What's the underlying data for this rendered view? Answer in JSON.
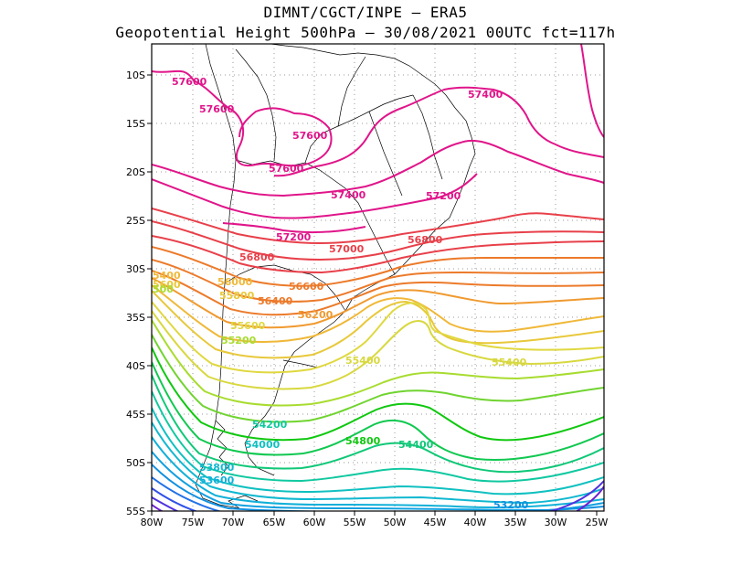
{
  "header": {
    "line1": "DIMNT/CGCT/INPE –  ERA5",
    "line2": "Geopotential Height 500hPa –  30/08/2021 00UTC fct=117h"
  },
  "axes": {
    "x_ticks": [
      "80W",
      "75W",
      "70W",
      "65W",
      "60W",
      "55W",
      "50W",
      "45W",
      "40W",
      "35W",
      "30W",
      "25W"
    ],
    "y_ticks": [
      "10S",
      "15S",
      "20S",
      "25S",
      "30S",
      "35S",
      "40S",
      "45S",
      "50S",
      "55S"
    ]
  },
  "contour_labels": [
    {
      "text": "57600",
      "color": "#e0158a"
    },
    {
      "text": "57600",
      "color": "#e0158a"
    },
    {
      "text": "57600",
      "color": "#e0158a"
    },
    {
      "text": "57600",
      "color": "#e0158a"
    },
    {
      "text": "57400",
      "color": "#e0158a"
    },
    {
      "text": "57400",
      "color": "#e0158a"
    },
    {
      "text": "57200",
      "color": "#e0158a"
    },
    {
      "text": "57200",
      "color": "#e0158a"
    },
    {
      "text": "57000",
      "color": "#e8404a"
    },
    {
      "text": "56800",
      "color": "#e8404a"
    },
    {
      "text": "56800",
      "color": "#e8404a"
    },
    {
      "text": "56600",
      "color": "#ec7a2a"
    },
    {
      "text": "56400",
      "color": "#ec7a2a"
    },
    {
      "text": "56200",
      "color": "#f09a30"
    },
    {
      "text": "56000",
      "color": "#f0b838"
    },
    {
      "text": "55800",
      "color": "#e8c83a"
    },
    {
      "text": "55600",
      "color": "#e0d840"
    },
    {
      "text": "55400",
      "color": "#d8d840"
    },
    {
      "text": "55400",
      "color": "#d8d840"
    },
    {
      "text": "55200",
      "color": "#a8dc30"
    },
    {
      "text": "54800",
      "color": "#10c810"
    },
    {
      "text": "54400",
      "color": "#10c878"
    },
    {
      "text": "54200",
      "color": "#10c8a0"
    },
    {
      "text": "54000",
      "color": "#10c0c0"
    },
    {
      "text": "53800",
      "color": "#10b8d0"
    },
    {
      "text": "53600",
      "color": "#10b0d8"
    },
    {
      "text": "53200",
      "color": "#1090e0"
    },
    {
      "text": "5400",
      "color": "#f0b838"
    },
    {
      "text": "5600",
      "color": "#e8c83a"
    },
    {
      "text": "500",
      "color": "#a8dc30"
    }
  ]
}
